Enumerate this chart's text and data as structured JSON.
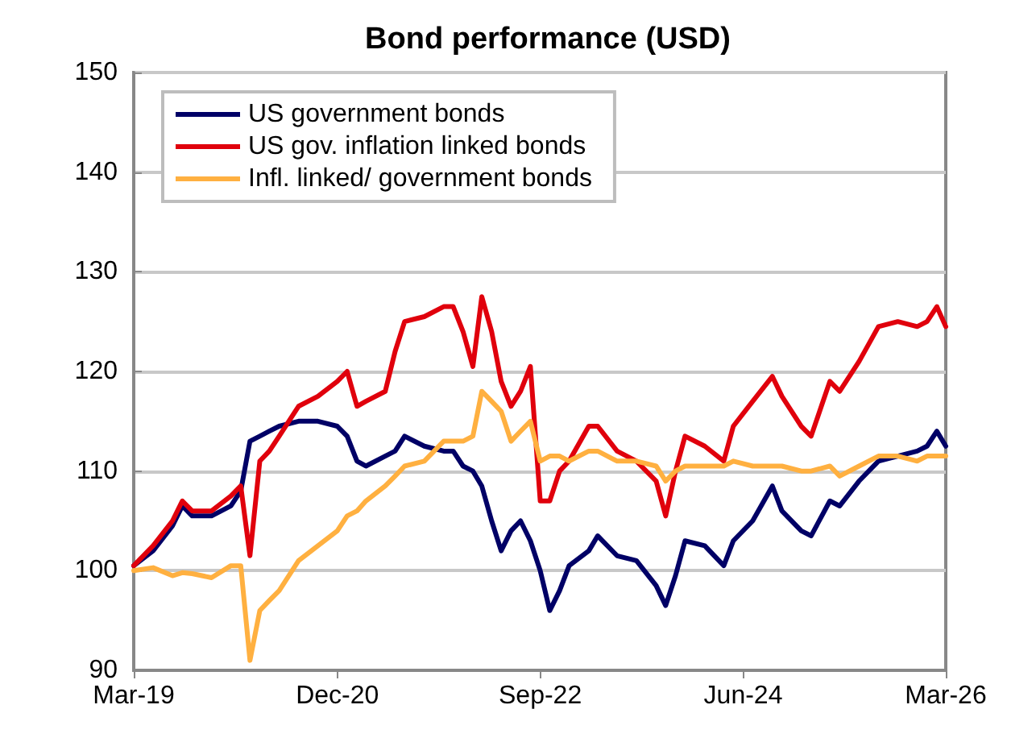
{
  "chart_data": {
    "type": "line",
    "title": "Bond performance (USD)",
    "x": [
      "2019-03",
      "2019-05",
      "2019-07",
      "2019-08",
      "2019-09",
      "2019-11",
      "2020-01",
      "2020-02",
      "2020-03",
      "2020-04",
      "2020-05",
      "2020-06",
      "2020-08",
      "2020-10",
      "2020-12",
      "2021-01",
      "2021-02",
      "2021-03",
      "2021-05",
      "2021-06",
      "2021-07",
      "2021-09",
      "2021-11",
      "2021-12",
      "2022-01",
      "2022-02",
      "2022-03",
      "2022-04",
      "2022-05",
      "2022-06",
      "2022-07",
      "2022-08",
      "2022-09",
      "2022-10",
      "2022-11",
      "2022-12",
      "2023-02",
      "2023-03",
      "2023-05",
      "2023-07",
      "2023-09",
      "2023-10",
      "2023-11",
      "2023-12",
      "2024-02",
      "2024-04",
      "2024-05",
      "2024-07",
      "2024-09",
      "2024-10",
      "2024-12",
      "2025-01",
      "2025-03",
      "2025-04",
      "2025-06",
      "2025-08",
      "2025-10",
      "2025-12",
      "2026-01",
      "2026-02",
      "2026-03"
    ],
    "series": [
      {
        "name": "US government bonds",
        "color": "#000066",
        "values": [
          100.5,
          102,
          104.5,
          106.5,
          105.5,
          105.5,
          106.5,
          108,
          113,
          113.5,
          114,
          114.5,
          115,
          115,
          114.5,
          113.5,
          111,
          110.5,
          111.5,
          112,
          113.5,
          112.5,
          112,
          112,
          110.5,
          110,
          108.5,
          105,
          102,
          104,
          105,
          103,
          100,
          96,
          98,
          100.5,
          102,
          103.5,
          101.5,
          101,
          98.5,
          96.5,
          99.5,
          103,
          102.5,
          100.5,
          103,
          105,
          108.5,
          106,
          104,
          103.5,
          107,
          106.5,
          109,
          111,
          111.5,
          112,
          112.5,
          114,
          112.5
        ]
      },
      {
        "name": "US gov. inflation linked bonds",
        "color": "#e0000c",
        "values": [
          100.5,
          102.5,
          105,
          107,
          106,
          106,
          107.5,
          108.5,
          101.5,
          111,
          112,
          113.5,
          116.5,
          117.5,
          119,
          120,
          116.5,
          117,
          118,
          122,
          125,
          125.5,
          126.5,
          126.5,
          124,
          120.5,
          127.5,
          124,
          119,
          116.5,
          118,
          120.5,
          107,
          107,
          110,
          111,
          114.5,
          114.5,
          112,
          111,
          109,
          105.5,
          110,
          113.5,
          112.5,
          111,
          114.5,
          117,
          119.5,
          117.5,
          114.5,
          113.5,
          119,
          118,
          121,
          124.5,
          125,
          124.5,
          125,
          126.5,
          124.5
        ]
      },
      {
        "name": "Infl. linked/ government bonds",
        "color": "#ffb040",
        "values": [
          100,
          100.3,
          99.5,
          99.8,
          99.7,
          99.3,
          100.5,
          100.5,
          91,
          96,
          97,
          98,
          101,
          102.5,
          104,
          105.5,
          106,
          107,
          108.5,
          109.5,
          110.5,
          111,
          113,
          113,
          113,
          113.5,
          118,
          117,
          116,
          113,
          114,
          115,
          111,
          111.5,
          111.5,
          111,
          112,
          112,
          111,
          111,
          110.5,
          109,
          110,
          110.5,
          110.5,
          110.5,
          111,
          110.5,
          110.5,
          110.5,
          110,
          110,
          110.5,
          109.5,
          110.5,
          111.5,
          111.5,
          111,
          111.5,
          111.5,
          111.5
        ]
      }
    ],
    "xlim": [
      "2019-03",
      "2026-03"
    ],
    "xticks": [
      {
        "value": "2019-03",
        "label": "Mar-19"
      },
      {
        "value": "2020-12",
        "label": "Dec-20"
      },
      {
        "value": "2022-09",
        "label": "Sep-22"
      },
      {
        "value": "2024-06",
        "label": "Jun-24"
      },
      {
        "value": "2026-03",
        "label": "Mar-26"
      }
    ],
    "ylim": [
      90,
      150
    ],
    "yticks": [
      90,
      100,
      110,
      120,
      130,
      140,
      150
    ],
    "grid": "y",
    "legend": "top left",
    "marker": "none",
    "line_style": "solid"
  }
}
